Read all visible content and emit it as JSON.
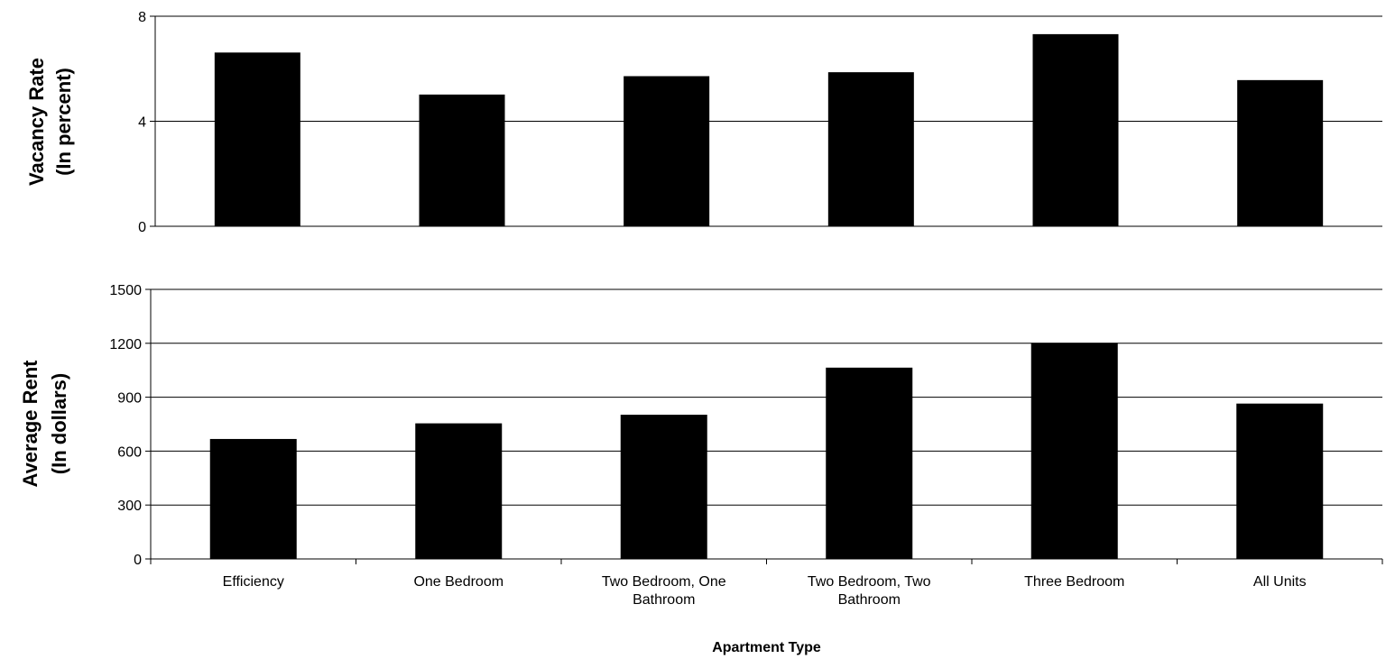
{
  "chart_data": [
    {
      "type": "bar",
      "categories": [
        "Efficiency",
        "One Bedroom",
        "Two Bedroom, One Bathroom",
        "Two Bedroom, Two Bathroom",
        "Three Bedroom",
        "All Units"
      ],
      "values": [
        6.6,
        5.0,
        5.7,
        5.85,
        7.3,
        5.55
      ],
      "ylabel": [
        "Vacancy Rate",
        "(In percent)"
      ],
      "ylim": [
        0,
        8
      ],
      "yticks": [
        "0",
        "4",
        "8"
      ],
      "grid": true,
      "bar_color": "#000000"
    },
    {
      "type": "bar",
      "categories": [
        "Efficiency",
        "One Bedroom",
        "Two Bedroom, One Bathroom",
        "Two Bedroom, Two Bathroom",
        "Three Bedroom",
        "All Units"
      ],
      "category_lines": [
        [
          "Efficiency"
        ],
        [
          "One Bedroom"
        ],
        [
          "Two Bedroom, One",
          "Bathroom"
        ],
        [
          "Two Bedroom, Two",
          "Bathroom"
        ],
        [
          "Three Bedroom"
        ],
        [
          "All Units"
        ]
      ],
      "values": [
        665,
        752,
        800,
        1062,
        1200,
        862
      ],
      "ylabel": [
        "Average Rent",
        "(In dollars)"
      ],
      "xlabel": "Apartment Type",
      "ylim": [
        0,
        1500
      ],
      "yticks": [
        "0",
        "300",
        "600",
        "900",
        "1200",
        "1500"
      ],
      "grid": true,
      "bar_color": "#000000"
    }
  ]
}
